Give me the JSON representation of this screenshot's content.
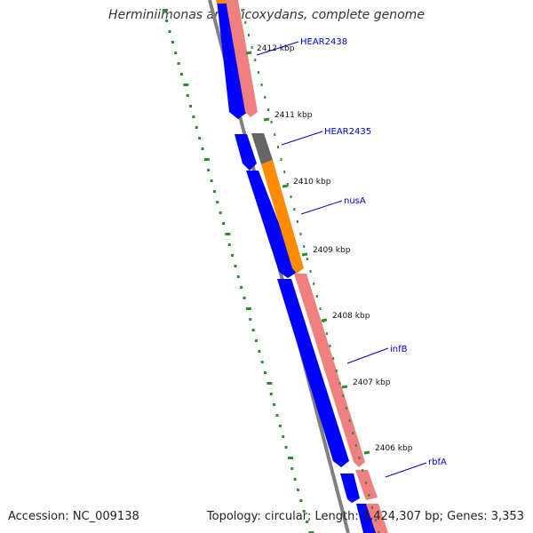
{
  "title": "Herminiimonas arsenicoxydans, complete genome",
  "accession": "Accession: NC_009138",
  "summary": "Topology: circular; Length: 3,424,307 bp; Genes: 3,353",
  "colors": {
    "cds_forward": "#f08080",
    "cds_reverse": "#0000ff",
    "highlight_orange": "#ff8c00",
    "highlight_gray": "#666666",
    "backbone": "#808080",
    "gc_skew": "#2e8b2e",
    "label": "#0000cc"
  },
  "ticks": [
    {
      "label": "2412 kbp"
    },
    {
      "label": "2411 kbp"
    },
    {
      "label": "2410 kbp"
    },
    {
      "label": "2409 kbp"
    },
    {
      "label": "2408 kbp"
    },
    {
      "label": "2407 kbp"
    },
    {
      "label": "2406 kbp"
    }
  ],
  "genes": [
    {
      "label": "HEAR2438"
    },
    {
      "label": "HEAR2435"
    },
    {
      "label": "nusA"
    },
    {
      "label": "infB"
    },
    {
      "label": "rbfA"
    }
  ]
}
